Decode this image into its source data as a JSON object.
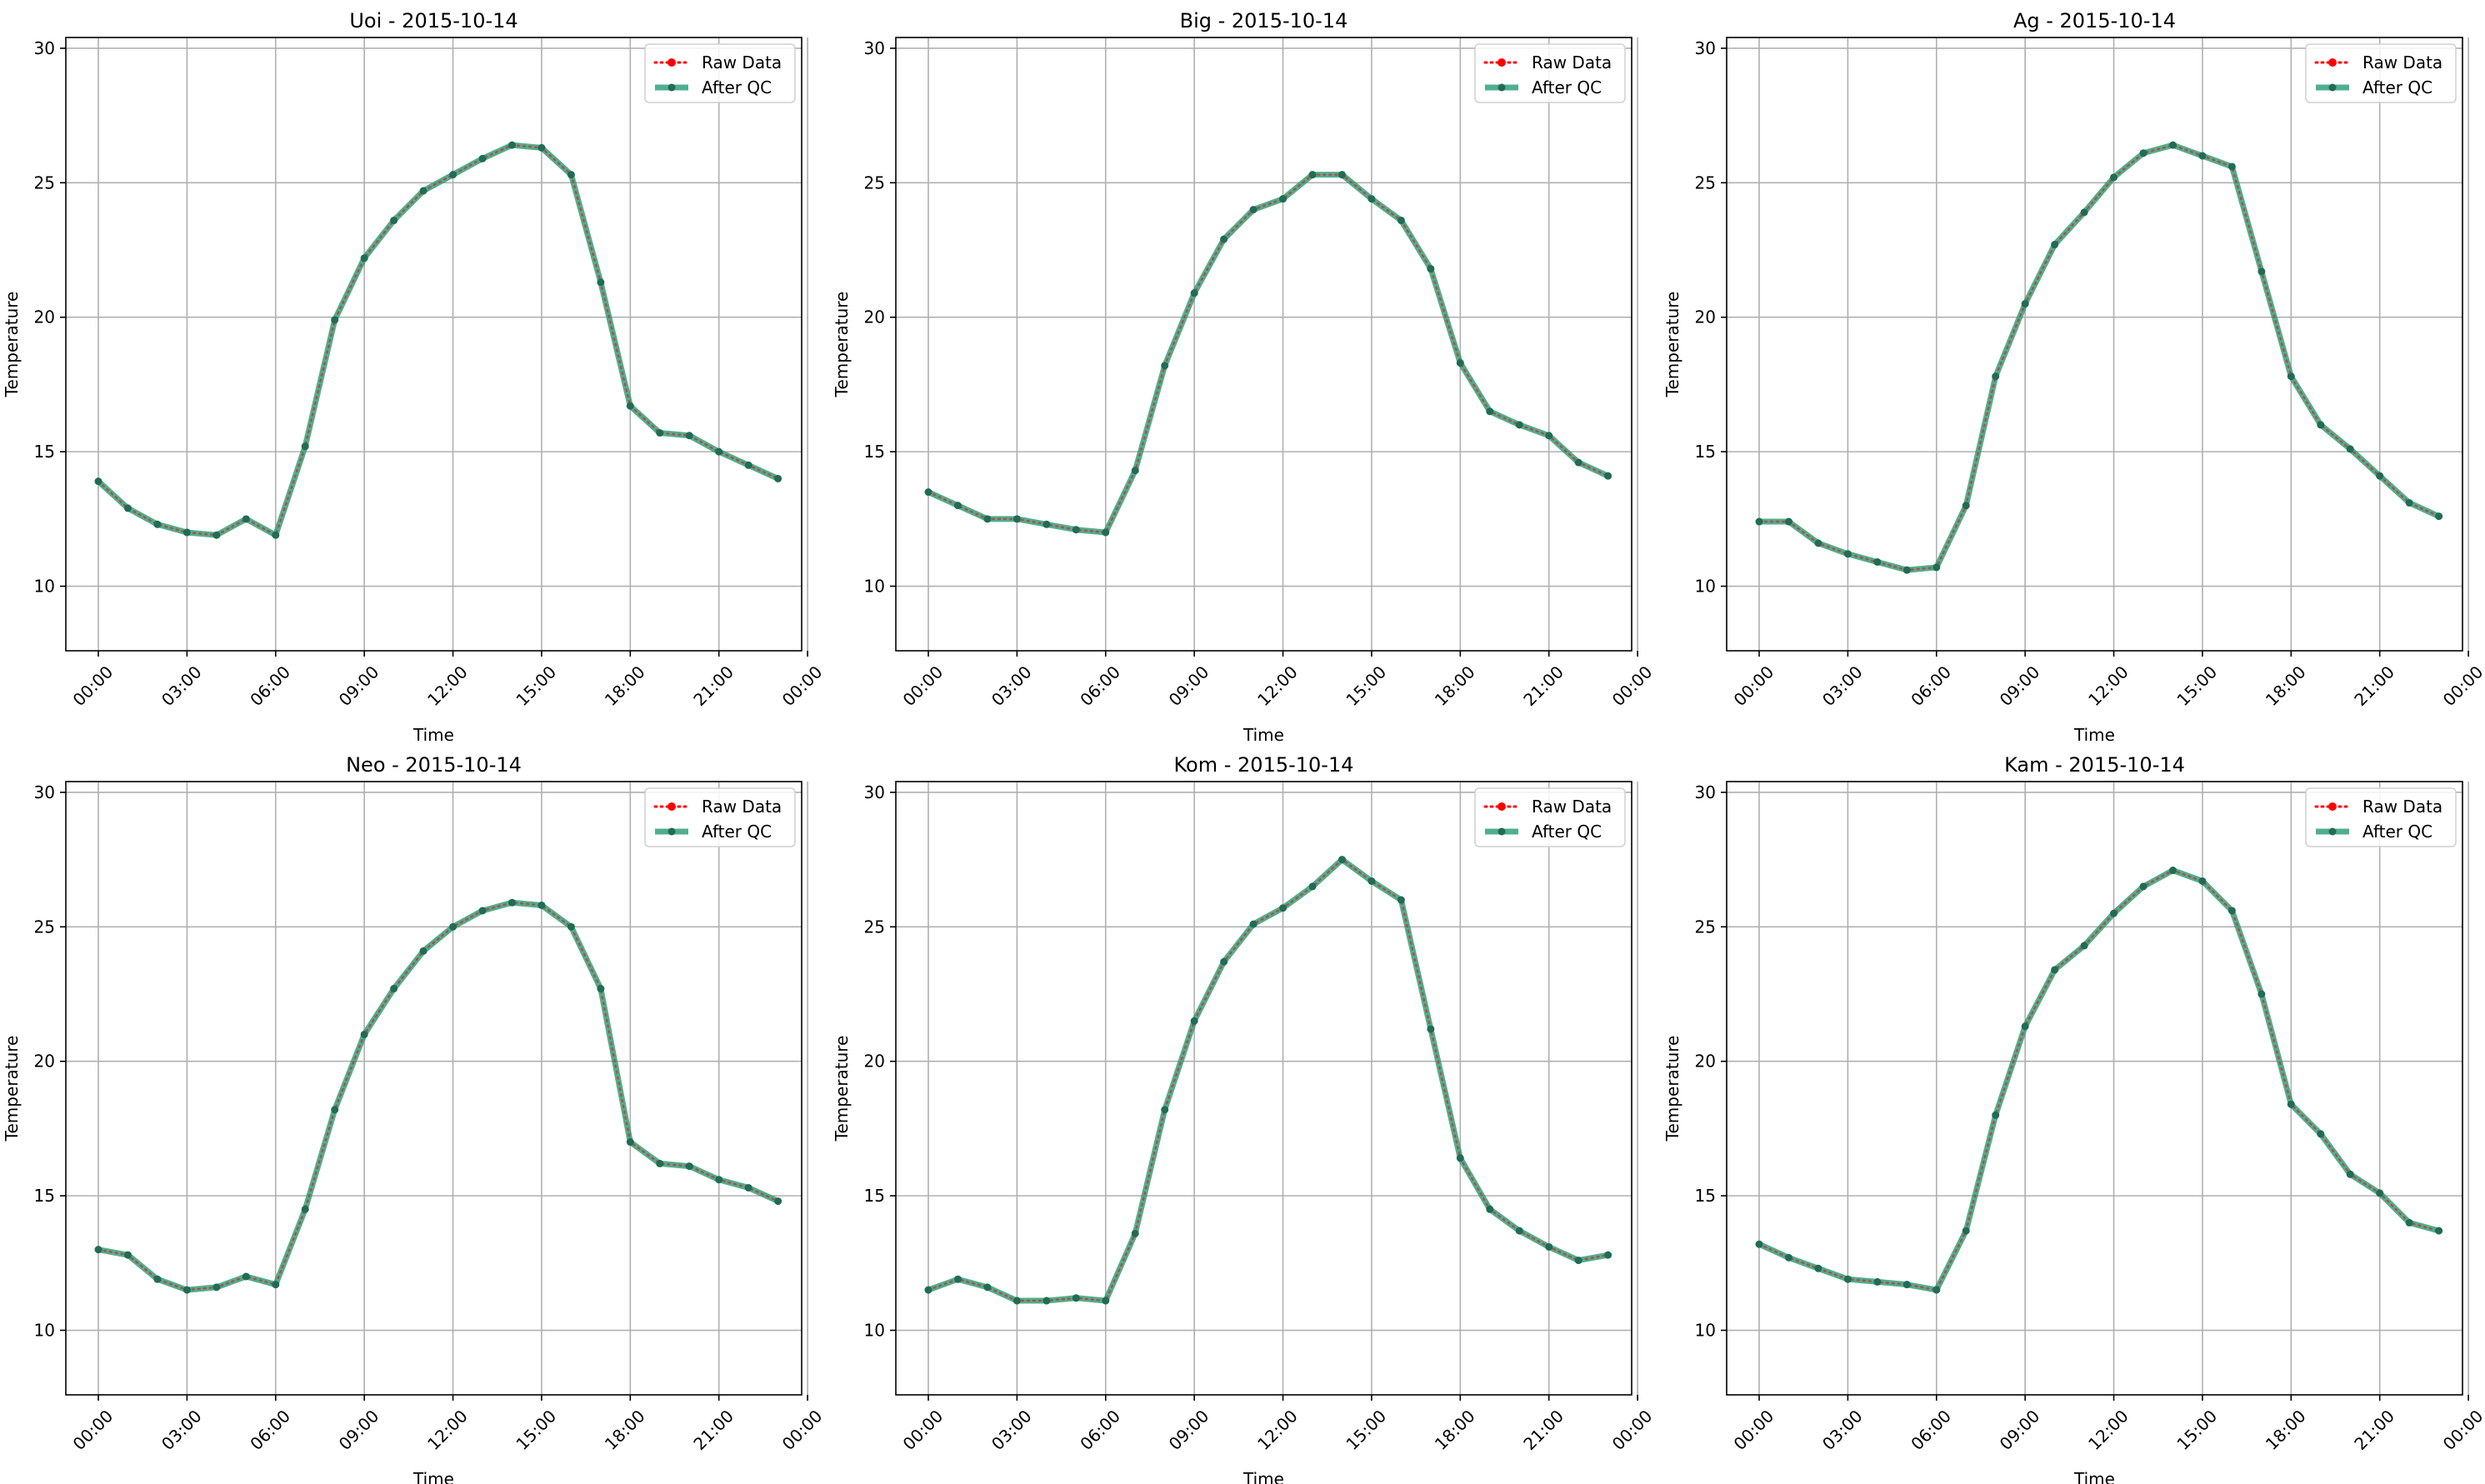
{
  "chart_data": [
    {
      "type": "line",
      "title": "Uoi - 2015-10-14",
      "xlabel": "Time",
      "ylabel": "Temperature",
      "ylim": [
        7.6,
        30.4
      ],
      "yticks": [
        10,
        15,
        20,
        25,
        30
      ],
      "xlim": [
        -1.1,
        23.8
      ],
      "xticks": [
        "00:00",
        "03:00",
        "06:00",
        "09:00",
        "12:00",
        "15:00",
        "18:00",
        "21:00",
        "00:00"
      ],
      "grid": true,
      "legend_position": "top-right",
      "x": [
        0,
        1,
        2,
        3,
        4,
        5,
        6,
        7,
        8,
        9,
        10,
        11,
        12,
        13,
        14,
        15,
        16,
        17,
        18,
        19,
        20,
        21,
        22,
        23
      ],
      "series": [
        {
          "name": "Raw Data",
          "color": "#ff0000",
          "style": "dotted",
          "values": [
            13.9,
            12.9,
            12.3,
            12.0,
            11.9,
            12.5,
            11.9,
            15.2,
            19.9,
            22.2,
            23.6,
            24.7,
            25.3,
            25.9,
            26.4,
            26.3,
            25.3,
            21.3,
            16.7,
            15.7,
            15.6,
            15.0,
            14.5,
            14.0
          ]
        },
        {
          "name": "After QC",
          "color": "#2a9d78",
          "style": "solid",
          "values": [
            13.9,
            12.9,
            12.3,
            12.0,
            11.9,
            12.5,
            11.9,
            15.2,
            19.9,
            22.2,
            23.6,
            24.7,
            25.3,
            25.9,
            26.4,
            26.3,
            25.3,
            21.3,
            16.7,
            15.7,
            15.6,
            15.0,
            14.5,
            14.0
          ]
        }
      ]
    },
    {
      "type": "line",
      "title": "Big - 2015-10-14",
      "xlabel": "Time",
      "ylabel": "Temperature",
      "ylim": [
        7.6,
        30.4
      ],
      "yticks": [
        10,
        15,
        20,
        25,
        30
      ],
      "xlim": [
        -1.1,
        23.8
      ],
      "xticks": [
        "00:00",
        "03:00",
        "06:00",
        "09:00",
        "12:00",
        "15:00",
        "18:00",
        "21:00",
        "00:00"
      ],
      "grid": true,
      "legend_position": "top-right",
      "x": [
        0,
        1,
        2,
        3,
        4,
        5,
        6,
        7,
        8,
        9,
        10,
        11,
        12,
        13,
        14,
        15,
        16,
        17,
        18,
        19,
        20,
        21,
        22,
        23
      ],
      "series": [
        {
          "name": "Raw Data",
          "color": "#ff0000",
          "style": "dotted",
          "values": [
            13.5,
            13.0,
            12.5,
            12.5,
            12.3,
            12.1,
            12.0,
            14.3,
            18.2,
            20.9,
            22.9,
            24.0,
            24.4,
            25.3,
            25.3,
            24.4,
            23.6,
            21.8,
            18.3,
            16.5,
            16.0,
            15.6,
            14.6,
            14.1
          ]
        },
        {
          "name": "After QC",
          "color": "#2a9d78",
          "style": "solid",
          "values": [
            13.5,
            13.0,
            12.5,
            12.5,
            12.3,
            12.1,
            12.0,
            14.3,
            18.2,
            20.9,
            22.9,
            24.0,
            24.4,
            25.3,
            25.3,
            24.4,
            23.6,
            21.8,
            18.3,
            16.5,
            16.0,
            15.6,
            14.6,
            14.1
          ]
        }
      ]
    },
    {
      "type": "line",
      "title": "Ag - 2015-10-14",
      "xlabel": "Time",
      "ylabel": "Temperature",
      "ylim": [
        7.6,
        30.4
      ],
      "yticks": [
        10,
        15,
        20,
        25,
        30
      ],
      "xlim": [
        -1.1,
        23.8
      ],
      "xticks": [
        "00:00",
        "03:00",
        "06:00",
        "09:00",
        "12:00",
        "15:00",
        "18:00",
        "21:00",
        "00:00"
      ],
      "grid": true,
      "legend_position": "top-right",
      "x": [
        0,
        1,
        2,
        3,
        4,
        5,
        6,
        7,
        8,
        9,
        10,
        11,
        12,
        13,
        14,
        15,
        16,
        17,
        18,
        19,
        20,
        21,
        22,
        23
      ],
      "series": [
        {
          "name": "Raw Data",
          "color": "#ff0000",
          "style": "dotted",
          "values": [
            12.4,
            12.4,
            11.6,
            11.2,
            10.9,
            10.6,
            10.7,
            13.0,
            17.8,
            20.5,
            22.7,
            23.9,
            25.2,
            26.1,
            26.4,
            26.0,
            25.6,
            21.7,
            17.8,
            16.0,
            15.1,
            14.1,
            13.1,
            12.6
          ]
        },
        {
          "name": "After QC",
          "color": "#2a9d78",
          "style": "solid",
          "values": [
            12.4,
            12.4,
            11.6,
            11.2,
            10.9,
            10.6,
            10.7,
            13.0,
            17.8,
            20.5,
            22.7,
            23.9,
            25.2,
            26.1,
            26.4,
            26.0,
            25.6,
            21.7,
            17.8,
            16.0,
            15.1,
            14.1,
            13.1,
            12.6
          ]
        }
      ]
    },
    {
      "type": "line",
      "title": "Neo - 2015-10-14",
      "xlabel": "Time",
      "ylabel": "Temperature",
      "ylim": [
        7.6,
        30.4
      ],
      "yticks": [
        10,
        15,
        20,
        25,
        30
      ],
      "xlim": [
        -1.1,
        23.8
      ],
      "xticks": [
        "00:00",
        "03:00",
        "06:00",
        "09:00",
        "12:00",
        "15:00",
        "18:00",
        "21:00",
        "00:00"
      ],
      "grid": true,
      "legend_position": "top-right",
      "x": [
        0,
        1,
        2,
        3,
        4,
        5,
        6,
        7,
        8,
        9,
        10,
        11,
        12,
        13,
        14,
        15,
        16,
        17,
        18,
        19,
        20,
        21,
        22,
        23
      ],
      "series": [
        {
          "name": "Raw Data",
          "color": "#ff0000",
          "style": "dotted",
          "values": [
            13.0,
            12.8,
            11.9,
            11.5,
            11.6,
            12.0,
            11.7,
            14.5,
            18.2,
            21.0,
            22.7,
            24.1,
            25.0,
            25.6,
            25.9,
            25.8,
            25.0,
            22.7,
            17.0,
            16.2,
            16.1,
            15.6,
            15.3,
            14.8
          ]
        },
        {
          "name": "After QC",
          "color": "#2a9d78",
          "style": "solid",
          "values": [
            13.0,
            12.8,
            11.9,
            11.5,
            11.6,
            12.0,
            11.7,
            14.5,
            18.2,
            21.0,
            22.7,
            24.1,
            25.0,
            25.6,
            25.9,
            25.8,
            25.0,
            22.7,
            17.0,
            16.2,
            16.1,
            15.6,
            15.3,
            14.8
          ]
        }
      ]
    },
    {
      "type": "line",
      "title": "Kom - 2015-10-14",
      "xlabel": "Time",
      "ylabel": "Temperature",
      "ylim": [
        7.6,
        30.4
      ],
      "yticks": [
        10,
        15,
        20,
        25,
        30
      ],
      "xlim": [
        -1.1,
        23.8
      ],
      "xticks": [
        "00:00",
        "03:00",
        "06:00",
        "09:00",
        "12:00",
        "15:00",
        "18:00",
        "21:00",
        "00:00"
      ],
      "grid": true,
      "legend_position": "top-right",
      "x": [
        0,
        1,
        2,
        3,
        4,
        5,
        6,
        7,
        8,
        9,
        10,
        11,
        12,
        13,
        14,
        15,
        16,
        17,
        18,
        19,
        20,
        21,
        22,
        23
      ],
      "series": [
        {
          "name": "Raw Data",
          "color": "#ff0000",
          "style": "dotted",
          "values": [
            11.5,
            11.9,
            11.6,
            11.1,
            11.1,
            11.2,
            11.1,
            13.6,
            18.2,
            21.5,
            23.7,
            25.1,
            25.7,
            26.5,
            27.5,
            26.7,
            26.0,
            21.2,
            16.4,
            14.5,
            13.7,
            13.1,
            12.6,
            12.8
          ]
        },
        {
          "name": "After QC",
          "color": "#2a9d78",
          "style": "solid",
          "values": [
            11.5,
            11.9,
            11.6,
            11.1,
            11.1,
            11.2,
            11.1,
            13.6,
            18.2,
            21.5,
            23.7,
            25.1,
            25.7,
            26.5,
            27.5,
            26.7,
            26.0,
            21.2,
            16.4,
            14.5,
            13.7,
            13.1,
            12.6,
            12.8
          ]
        }
      ]
    },
    {
      "type": "line",
      "title": "Kam - 2015-10-14",
      "xlabel": "Time",
      "ylabel": "Temperature",
      "ylim": [
        7.6,
        30.4
      ],
      "yticks": [
        10,
        15,
        20,
        25,
        30
      ],
      "xlim": [
        -1.1,
        23.8
      ],
      "xticks": [
        "00:00",
        "03:00",
        "06:00",
        "09:00",
        "12:00",
        "15:00",
        "18:00",
        "21:00",
        "00:00"
      ],
      "grid": true,
      "legend_position": "top-right",
      "x": [
        0,
        1,
        2,
        3,
        4,
        5,
        6,
        7,
        8,
        9,
        10,
        11,
        12,
        13,
        14,
        15,
        16,
        17,
        18,
        19,
        20,
        21,
        22,
        23
      ],
      "series": [
        {
          "name": "Raw Data",
          "color": "#ff0000",
          "style": "dotted",
          "values": [
            13.2,
            12.7,
            12.3,
            11.9,
            11.8,
            11.7,
            11.5,
            13.7,
            18.0,
            21.3,
            23.4,
            24.3,
            25.5,
            26.5,
            27.1,
            26.7,
            25.6,
            22.5,
            18.4,
            17.3,
            15.8,
            15.1,
            14.0,
            13.7
          ]
        },
        {
          "name": "After QC",
          "color": "#2a9d78",
          "style": "solid",
          "values": [
            13.2,
            12.7,
            12.3,
            11.9,
            11.8,
            11.7,
            11.5,
            13.7,
            18.0,
            21.3,
            23.4,
            24.3,
            25.5,
            26.5,
            27.1,
            26.7,
            25.6,
            22.5,
            18.4,
            17.3,
            15.8,
            15.1,
            14.0,
            13.7
          ]
        }
      ]
    }
  ]
}
